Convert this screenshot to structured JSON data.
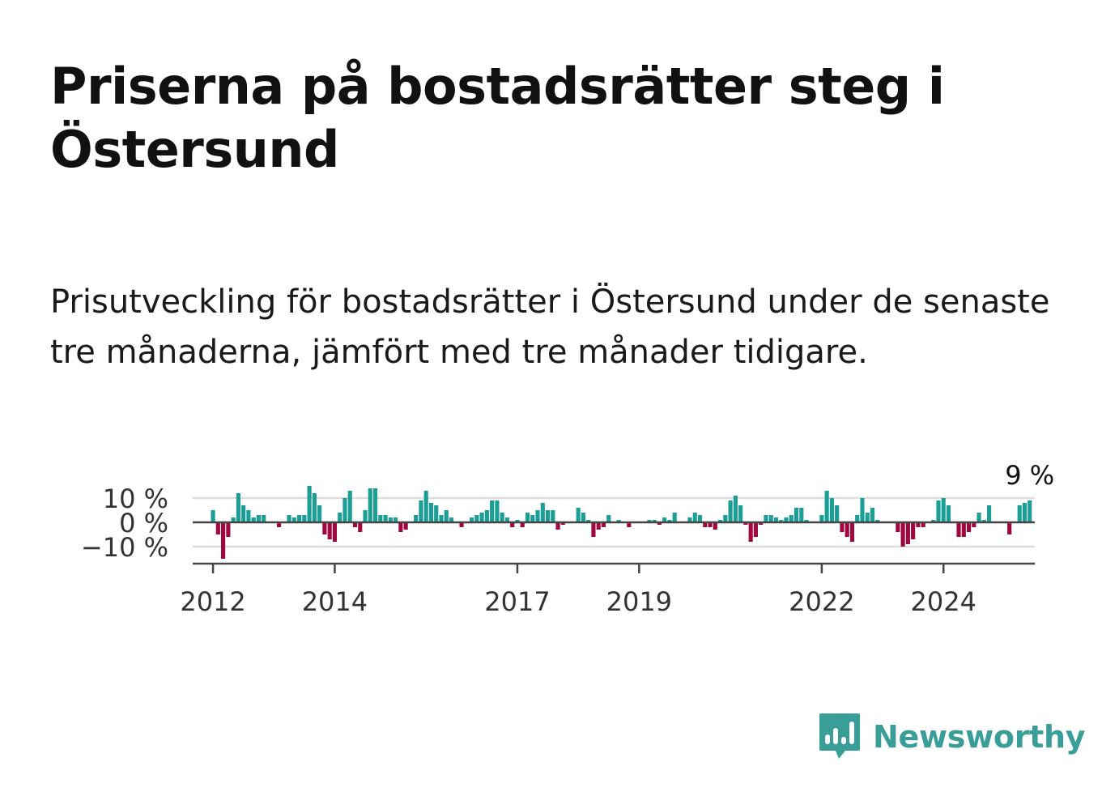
{
  "header": {
    "title": "Priserna på bostadsrätter steg i Östersund",
    "subtitle": "Prisutveckling för bostadsrätter i Östersund under de senaste tre månaderna, jämfört med tre månader tidigare."
  },
  "brand": {
    "name": "Newsworthy",
    "logo_icon": "bar-chart-speech-bubble-icon"
  },
  "colors": {
    "positive": "#1a9e96",
    "negative": "#a0073f",
    "grid": "#dddddd",
    "axis": "#444444"
  },
  "chart_data": {
    "type": "bar",
    "title": "",
    "xlabel": "",
    "ylabel": "",
    "x_start": "2012-01",
    "frequency": "monthly",
    "xticks": [
      "2012",
      "2014",
      "2017",
      "2019",
      "2022",
      "2024"
    ],
    "yticks": [
      "10 %",
      "0 %",
      "−10 %"
    ],
    "ytick_values": [
      10,
      0,
      -10
    ],
    "ylim": [
      -17,
      11
    ],
    "xlim": [
      "2011-09",
      "2025-07"
    ],
    "grid": true,
    "last_label": "9 %",
    "values": [
      5,
      -5,
      -15,
      -6,
      2,
      12,
      7,
      5,
      2,
      3,
      3,
      0,
      0,
      -2,
      0,
      3,
      2,
      3,
      3,
      15,
      12,
      7,
      -5,
      -7,
      -8,
      4,
      10,
      13,
      -2,
      -4,
      5,
      14,
      14,
      3,
      3,
      2,
      2,
      -4,
      -3,
      0,
      3,
      9,
      13,
      8,
      7,
      3,
      5,
      2,
      0,
      -2,
      0,
      2,
      3,
      4,
      5,
      9,
      9,
      4,
      2,
      -2,
      1,
      -2,
      4,
      3,
      5,
      8,
      5,
      5,
      -3,
      -1,
      0,
      0,
      6,
      4,
      1,
      -6,
      -3,
      -2,
      3,
      0,
      1,
      0,
      -2,
      0,
      0,
      0,
      1,
      1,
      -1,
      2,
      1,
      4,
      0,
      0,
      2,
      4,
      3,
      -2,
      -2,
      -3,
      1,
      3,
      9,
      11,
      7,
      -1,
      -8,
      -6,
      -1,
      3,
      3,
      2,
      1,
      2,
      3,
      6,
      6,
      1,
      0,
      0,
      3,
      13,
      10,
      7,
      -4,
      -6,
      -8,
      3,
      10,
      4,
      6,
      1,
      0,
      0,
      0,
      -4,
      -10,
      -9,
      -7,
      -2,
      -2,
      0,
      1,
      9,
      10,
      7,
      0,
      -6,
      -6,
      -4,
      -2,
      4,
      1,
      7,
      0,
      0,
      0,
      -5,
      0,
      7,
      8,
      9
    ]
  }
}
